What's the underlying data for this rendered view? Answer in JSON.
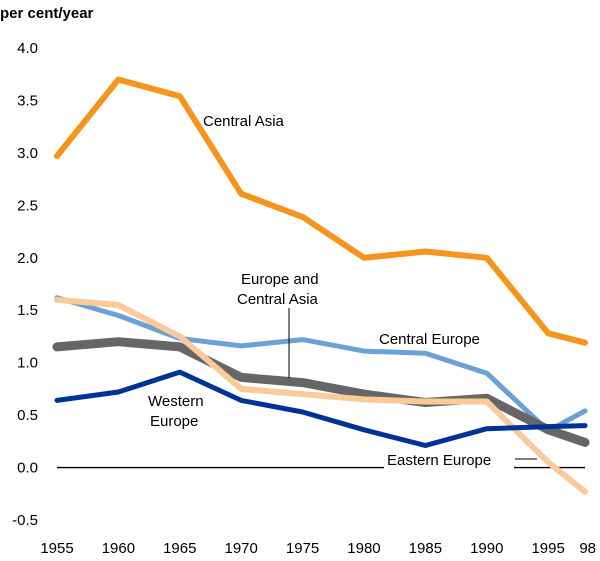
{
  "chart_data": {
    "type": "line",
    "title": "",
    "ylabel": "per cent/year",
    "xlabel": "",
    "x": [
      1955,
      1960,
      1965,
      1970,
      1975,
      1980,
      1985,
      1990,
      1995,
      1998
    ],
    "x_tick_labels": [
      "1955",
      "1960",
      "1965",
      "1970",
      "1975",
      "1980",
      "1985",
      "1990",
      "1995",
      "98"
    ],
    "y_ticks": [
      -0.5,
      0.0,
      0.5,
      1.0,
      1.5,
      2.0,
      2.5,
      3.0,
      3.5,
      4.0
    ],
    "y_tick_labels": [
      "-0.5",
      "0.0",
      "0.5",
      "1.0",
      "1.5",
      "2.0",
      "2.5",
      "3.0",
      "3.5",
      "4.0"
    ],
    "xlim": [
      1955,
      1998
    ],
    "ylim": [
      -0.5,
      4.0
    ],
    "grid": false,
    "zero_line": true,
    "series": [
      {
        "name": "Central Asia",
        "color": "#f7941d",
        "values": [
          2.97,
          3.7,
          3.54,
          2.61,
          2.39,
          2.0,
          2.06,
          2.0,
          1.28,
          1.19
        ]
      },
      {
        "name": "Central Europe",
        "color": "#6aa1d6",
        "values": [
          1.62,
          1.45,
          1.23,
          1.16,
          1.22,
          1.11,
          1.09,
          0.9,
          0.35,
          0.54
        ]
      },
      {
        "name": "Europe and Central Asia",
        "color": "#666666",
        "values": [
          1.15,
          1.2,
          1.15,
          0.86,
          0.81,
          0.7,
          0.62,
          0.66,
          0.36,
          0.24
        ]
      },
      {
        "name": "Eastern Europe",
        "color": "#fbc99a",
        "values": [
          1.6,
          1.55,
          1.25,
          0.75,
          0.7,
          0.65,
          0.63,
          0.63,
          0.05,
          -0.23
        ]
      },
      {
        "name": "Western Europe",
        "color": "#003399",
        "values": [
          0.64,
          0.72,
          0.91,
          0.64,
          0.53,
          0.36,
          0.21,
          0.37,
          0.39,
          0.4
        ]
      }
    ],
    "annotations": [
      {
        "id": "central-asia",
        "text": "Central Asia"
      },
      {
        "id": "central-europe",
        "text": "Central Europe"
      },
      {
        "id": "europe-central-asia",
        "lines": [
          "Europe and",
          "Central Asia"
        ]
      },
      {
        "id": "western-europe",
        "lines": [
          "Western",
          "Europe"
        ]
      },
      {
        "id": "eastern-europe",
        "text": "Eastern Europe"
      }
    ]
  }
}
